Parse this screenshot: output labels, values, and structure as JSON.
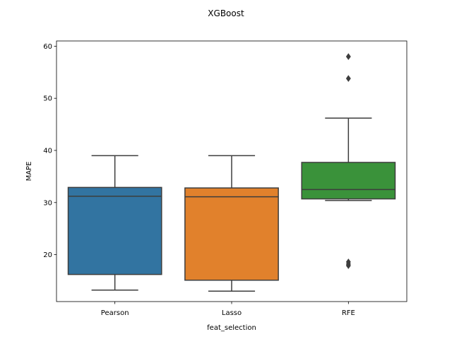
{
  "chart_data": {
    "type": "box",
    "title": "XGBoost",
    "xlabel": "feat_selection",
    "ylabel": "MAPE",
    "categories": [
      "Pearson",
      "Lasso",
      "RFE"
    ],
    "ylim": [
      11,
      61
    ],
    "yticks": [
      20,
      30,
      40,
      50,
      60
    ],
    "grid": false,
    "boxes": [
      {
        "category": "Pearson",
        "whisker_low": 13.2,
        "q1": 16.2,
        "median": 31.2,
        "q3": 32.9,
        "whisker_high": 39.0,
        "outliers": [],
        "color": "#3274a1"
      },
      {
        "category": "Lasso",
        "whisker_low": 13.0,
        "q1": 15.1,
        "median": 31.1,
        "q3": 32.8,
        "whisker_high": 39.0,
        "outliers": [],
        "color": "#e1812c"
      },
      {
        "category": "RFE",
        "whisker_low": 30.4,
        "q1": 30.7,
        "median": 32.5,
        "q3": 37.7,
        "whisker_high": 46.2,
        "outliers": [
          58.0,
          53.8,
          18.6,
          18.2,
          17.9
        ],
        "color": "#3a923a"
      }
    ]
  }
}
